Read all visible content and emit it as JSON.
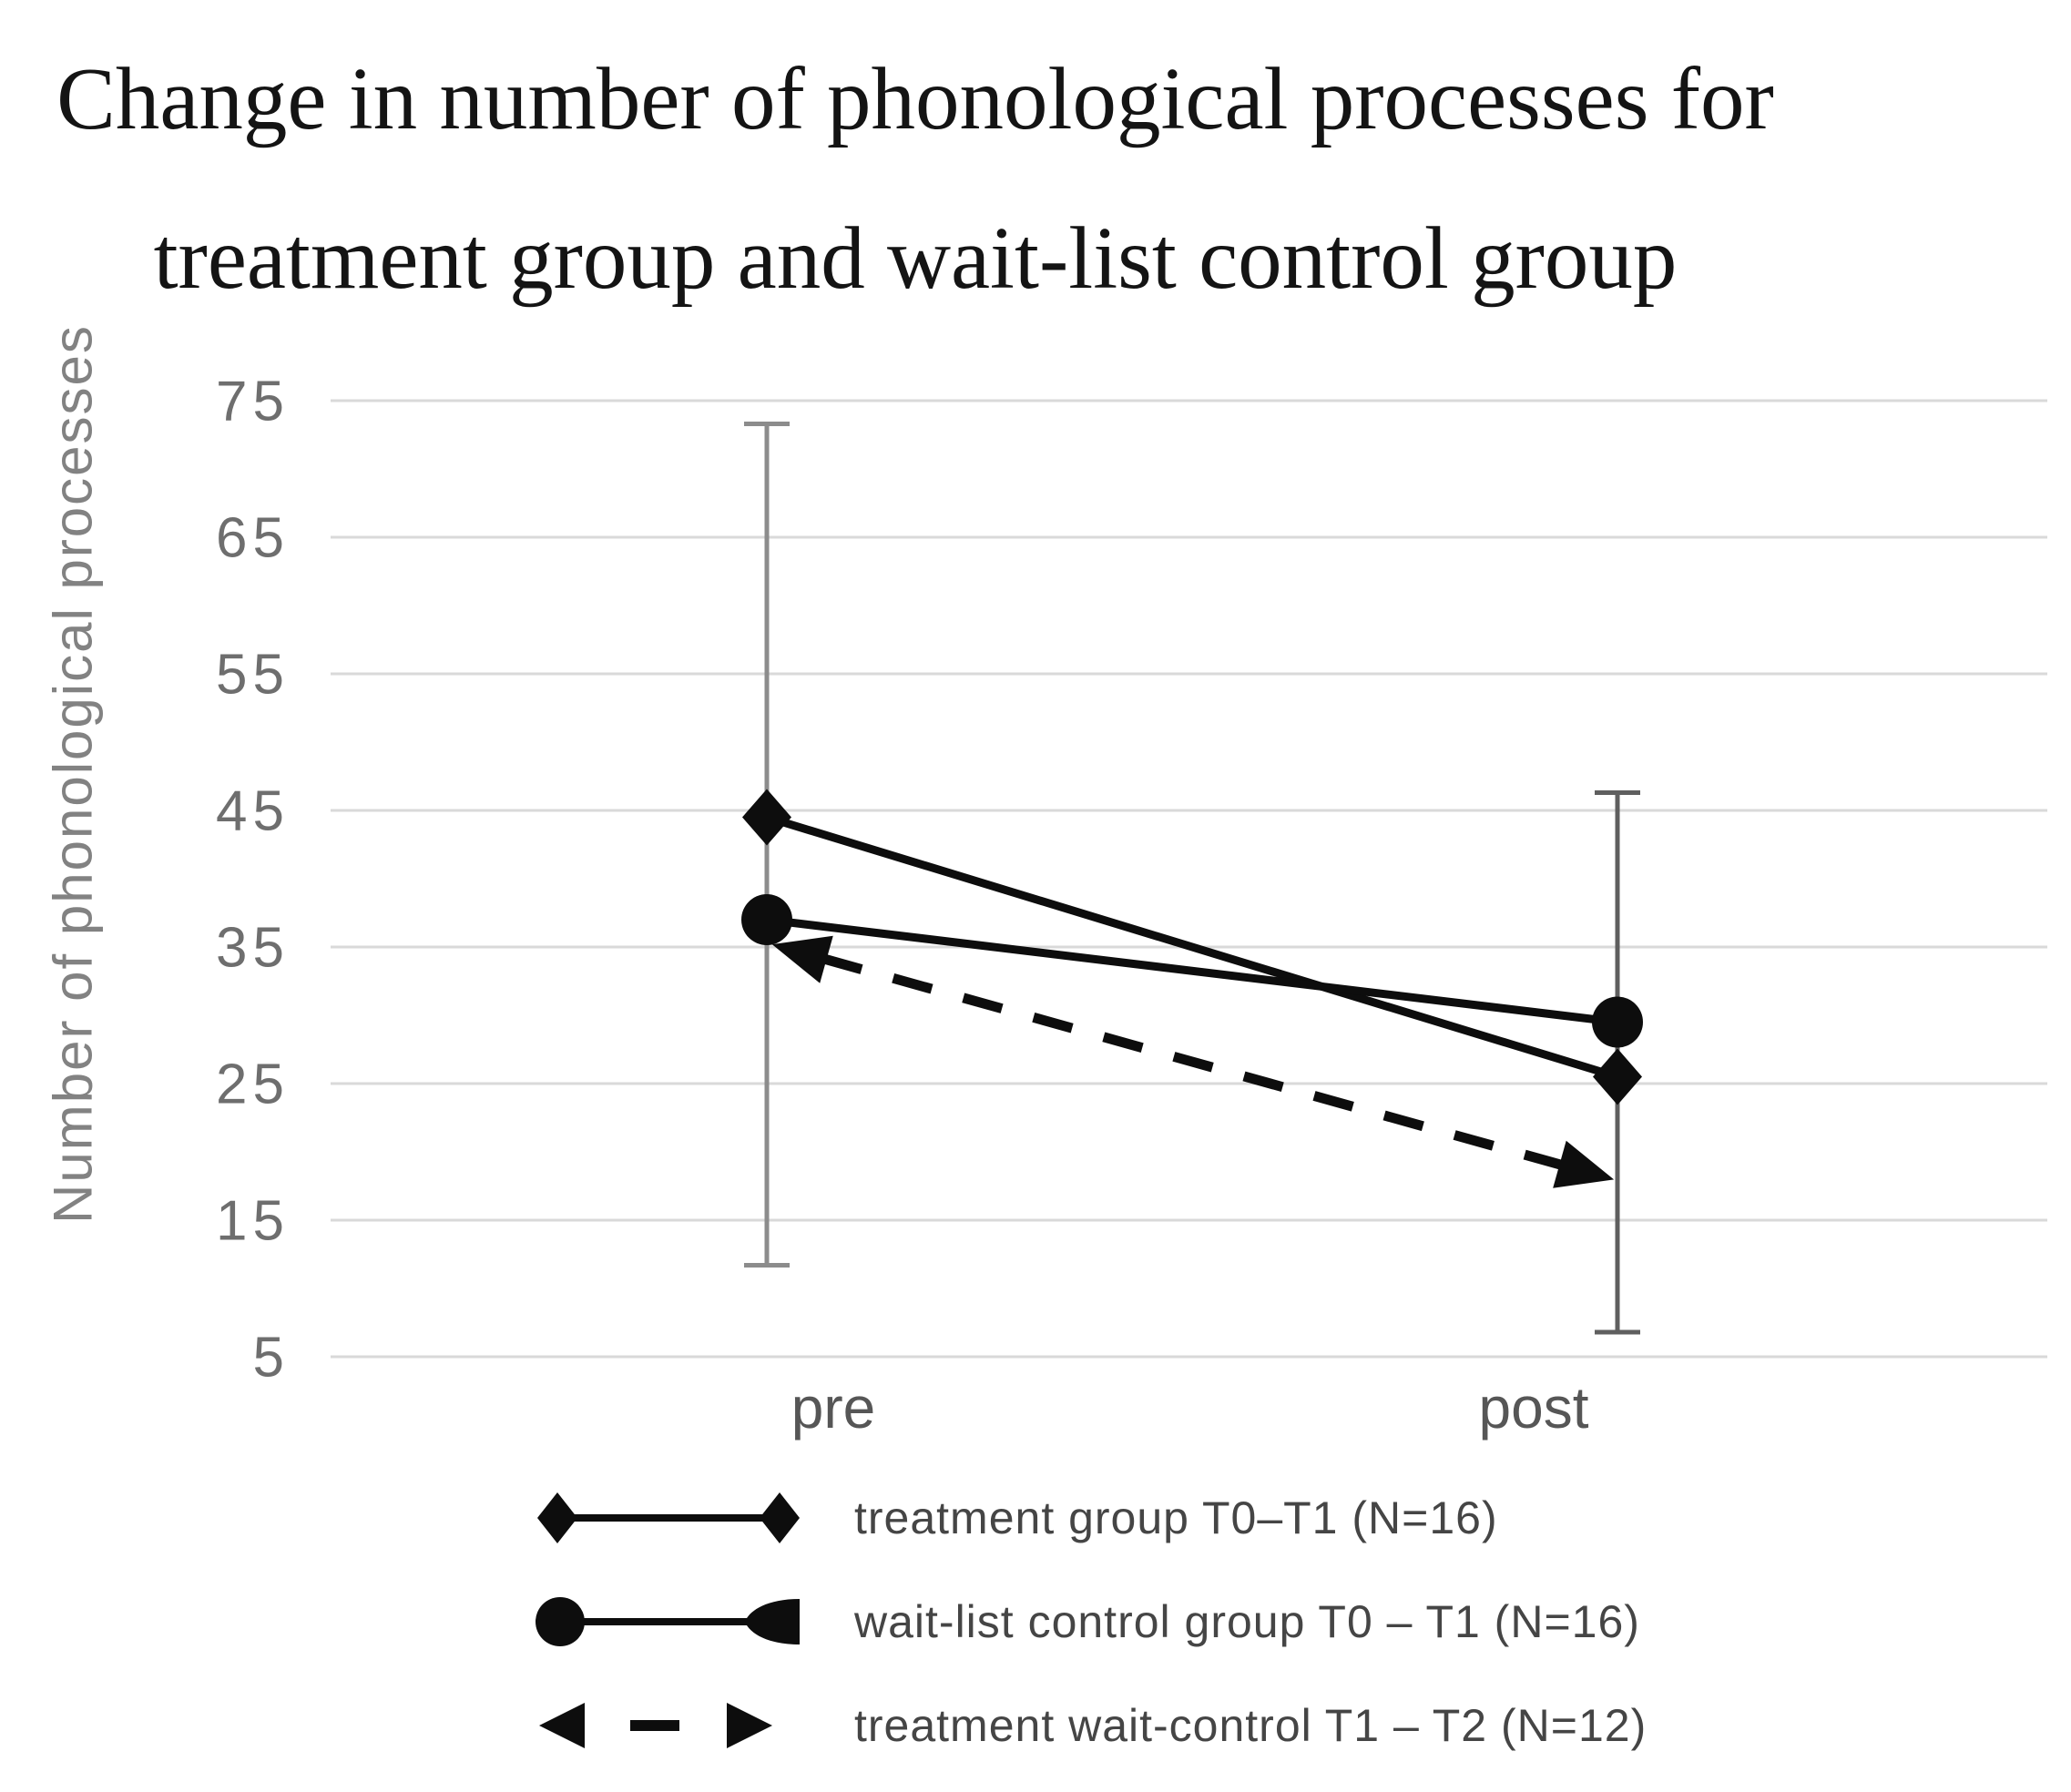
{
  "title": {
    "line1": "Change in number of phonological processes for",
    "line2": "treatment group and wait-list control group"
  },
  "y_axis": {
    "label": "Number of phonological processes",
    "ticks": [
      75,
      65,
      55,
      45,
      35,
      25,
      15,
      5
    ]
  },
  "x_axis": {
    "categories": [
      "pre",
      "post"
    ]
  },
  "legend": [
    {
      "label": "treatment group T0–T1 (N=16)"
    },
    {
      "label": "wait-list control group T0 – T1 (N=16)"
    },
    {
      "label": "treatment wait-control T1 – T2 (N=12)"
    }
  ],
  "colors": {
    "series": "#0d0d0d",
    "grid": "#d9d9d9",
    "tick_text": "#6e6e6e",
    "category_text": "#565656",
    "axis_title_text": "#828282",
    "legend_text": "#454545",
    "title_text": "#141414"
  },
  "chart_data": {
    "type": "line",
    "title": "Change in number of phonological processes for treatment group and wait-list control group",
    "ylabel": "Number of phonological processes",
    "ylim": [
      5,
      75
    ],
    "yticks": [
      5,
      15,
      25,
      35,
      45,
      55,
      65,
      75
    ],
    "grid": true,
    "legend_position": "bottom",
    "categories": [
      "pre",
      "post"
    ],
    "series": [
      {
        "name": "treatment group T0–T1 (N=16)",
        "values": [
          44.5,
          25.5
        ],
        "marker": "diamond",
        "line": "solid"
      },
      {
        "name": "wait-list control group T0 – T1 (N=16)",
        "values": [
          37,
          29.5
        ],
        "marker": "circle",
        "line": "solid"
      },
      {
        "name": "treatment wait-control T1 – T2 (N=12)",
        "values": [
          35.3,
          17.9
        ],
        "marker": "double-arrow",
        "line": "dashed"
      }
    ],
    "error_bars": [
      {
        "category": "pre",
        "low": 11.7,
        "high": 73.3,
        "color": "#8c8c8c"
      },
      {
        "category": "post",
        "low": 6.8,
        "high": 46.3,
        "color": "#5f5f5f"
      }
    ]
  }
}
